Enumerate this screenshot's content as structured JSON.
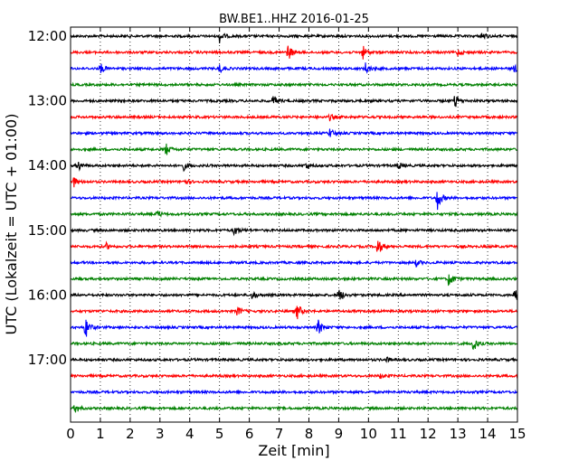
{
  "chart_data": {
    "type": "line",
    "title": "BW.BE1..HHZ 2016-01-25",
    "xlabel": "Zeit  [min]",
    "ylabel": "UTC (Lokalzeit = UTC + 01:00)",
    "xlim": [
      0,
      15
    ],
    "x_ticks": [
      "0",
      "1",
      "2",
      "3",
      "4",
      "5",
      "6",
      "7",
      "8",
      "9",
      "10",
      "11",
      "12",
      "13",
      "14",
      "15"
    ],
    "y_ticks": [
      "12:00",
      "13:00",
      "14:00",
      "15:00",
      "16:00",
      "17:00"
    ],
    "grid": "vertical dotted",
    "colors": [
      "#000000",
      "#ff0000",
      "#0000ff",
      "#008000"
    ],
    "series": [
      {
        "start": "12:00",
        "color": "#000000",
        "events": [
          [
            5.0,
            0.55
          ],
          [
            13.8,
            0.35
          ]
        ]
      },
      {
        "start": "12:15",
        "color": "#ff0000",
        "events": [
          [
            7.3,
            0.7
          ],
          [
            9.8,
            0.6
          ],
          [
            13.0,
            0.3
          ]
        ]
      },
      {
        "start": "12:30",
        "color": "#0000ff",
        "events": [
          [
            1.0,
            0.5
          ],
          [
            5.0,
            0.4
          ],
          [
            9.9,
            0.5
          ],
          [
            14.9,
            0.3
          ]
        ]
      },
      {
        "start": "12:45",
        "color": "#008000",
        "events": []
      },
      {
        "start": "13:00",
        "color": "#000000",
        "events": [
          [
            6.8,
            0.5
          ],
          [
            12.9,
            0.6
          ]
        ]
      },
      {
        "start": "13:15",
        "color": "#ff0000",
        "events": [
          [
            8.7,
            0.25
          ]
        ]
      },
      {
        "start": "13:30",
        "color": "#0000ff",
        "events": [
          [
            8.7,
            0.4
          ]
        ]
      },
      {
        "start": "13:45",
        "color": "#008000",
        "events": [
          [
            3.2,
            0.55
          ]
        ]
      },
      {
        "start": "14:00",
        "color": "#000000",
        "events": [
          [
            0.25,
            0.5
          ],
          [
            3.8,
            0.35
          ],
          [
            7.9,
            0.3
          ],
          [
            11.0,
            0.35
          ]
        ]
      },
      {
        "start": "14:15",
        "color": "#ff0000",
        "events": [
          [
            0.1,
            0.45
          ],
          [
            3.8,
            0.3
          ]
        ]
      },
      {
        "start": "14:30",
        "color": "#0000ff",
        "events": [
          [
            12.3,
            1.1
          ]
        ]
      },
      {
        "start": "14:45",
        "color": "#008000",
        "events": [
          [
            2.9,
            0.3
          ]
        ]
      },
      {
        "start": "15:00",
        "color": "#000000",
        "events": [
          [
            5.5,
            0.45
          ]
        ]
      },
      {
        "start": "15:15",
        "color": "#ff0000",
        "events": [
          [
            10.3,
            0.85
          ],
          [
            1.2,
            0.25
          ]
        ]
      },
      {
        "start": "15:30",
        "color": "#0000ff",
        "events": [
          [
            11.6,
            0.3
          ]
        ]
      },
      {
        "start": "15:45",
        "color": "#008000",
        "events": [
          [
            12.7,
            0.75
          ]
        ]
      },
      {
        "start": "16:00",
        "color": "#000000",
        "events": [
          [
            6.1,
            0.35
          ],
          [
            9.0,
            0.6
          ],
          [
            14.9,
            0.65
          ]
        ]
      },
      {
        "start": "16:15",
        "color": "#ff0000",
        "events": [
          [
            5.6,
            0.4
          ],
          [
            7.6,
            0.75
          ]
        ]
      },
      {
        "start": "16:30",
        "color": "#0000ff",
        "events": [
          [
            0.5,
            1.0
          ],
          [
            8.3,
            0.75
          ]
        ]
      },
      {
        "start": "16:45",
        "color": "#008000",
        "events": [
          [
            13.5,
            0.75
          ]
        ]
      },
      {
        "start": "17:00",
        "color": "#000000",
        "events": [
          [
            10.6,
            0.2
          ]
        ]
      },
      {
        "start": "17:15",
        "color": "#ff0000",
        "events": [
          [
            10.4,
            0.2
          ]
        ]
      },
      {
        "start": "17:30",
        "color": "#0000ff",
        "events": []
      },
      {
        "start": "17:45",
        "color": "#008000",
        "events": [
          [
            0.15,
            0.45
          ]
        ]
      }
    ]
  }
}
